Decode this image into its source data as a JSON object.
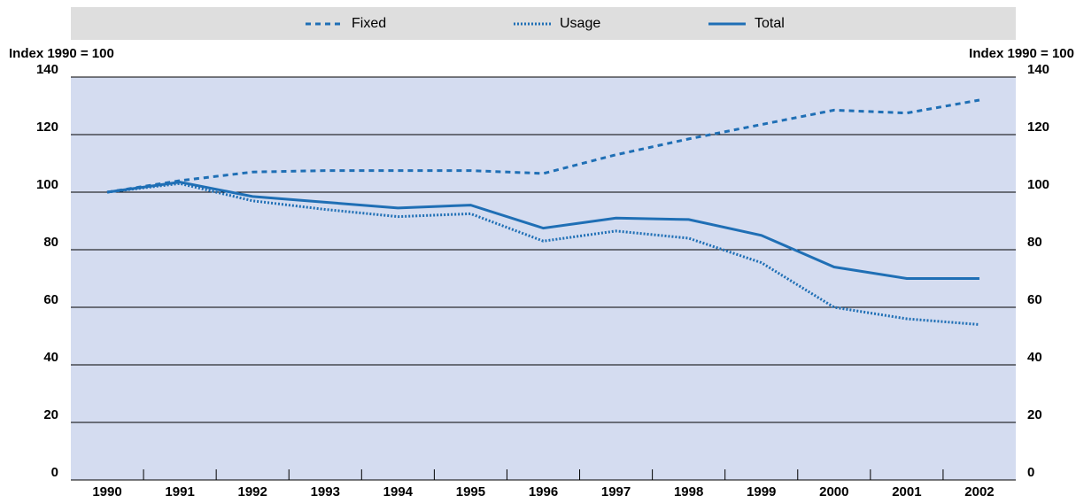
{
  "chart_data": {
    "type": "line",
    "y_label": "Index 1990 = 100",
    "y2_label": "Index 1990 = 100",
    "categories": [
      "1990",
      "1991",
      "1992",
      "1993",
      "1994",
      "1995",
      "1996",
      "1997",
      "1998",
      "1999",
      "2000",
      "2001",
      "2002"
    ],
    "series": [
      {
        "name": "Fixed",
        "color": "#1f6fb5",
        "dash": "dashed",
        "values": [
          100,
          104,
          107,
          107.5,
          107.5,
          107.5,
          106.5,
          113,
          118.5,
          123.5,
          128.5,
          127.5,
          132
        ]
      },
      {
        "name": "Usage",
        "color": "#1f6fb5",
        "dash": "dotted",
        "values": [
          100,
          103,
          97,
          94,
          91.5,
          92.5,
          83,
          86.5,
          84,
          75.5,
          60,
          56,
          54
        ]
      },
      {
        "name": "Total",
        "color": "#1f6fb5",
        "dash": "solid",
        "values": [
          100,
          103.5,
          98.5,
          96.5,
          94.5,
          95.5,
          87.5,
          91,
          90.5,
          85,
          74,
          70,
          70
        ]
      }
    ],
    "ylim": [
      0,
      140
    ],
    "yticks": [
      0,
      20,
      40,
      60,
      80,
      100,
      120,
      140
    ],
    "y2lim": [
      0,
      140
    ],
    "y2ticks": [
      0,
      20,
      40,
      60,
      80,
      100,
      120,
      140
    ],
    "grid": true,
    "legend": "top",
    "plot_color": "#d4dcf0"
  }
}
